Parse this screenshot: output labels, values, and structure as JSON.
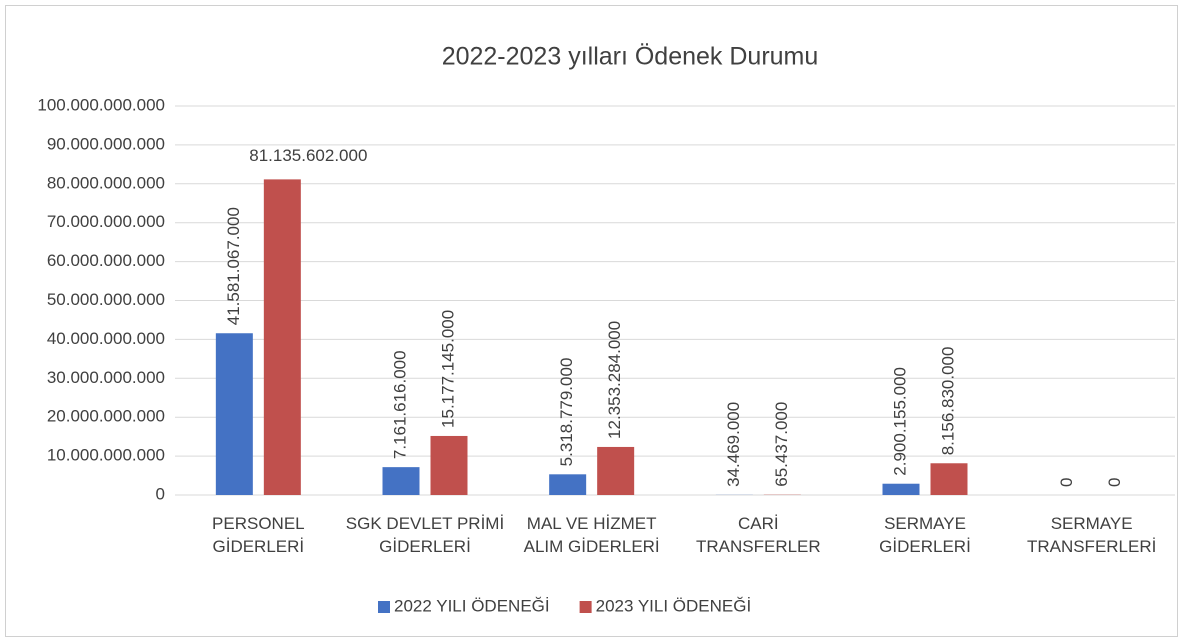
{
  "chart_data": {
    "type": "bar",
    "title": "2022-2023 yılları Ödenek Durumu",
    "categories": [
      "PERSONEL GİDERLERİ",
      "SGK DEVLET PRİMİ GİDERLERİ",
      "MAL VE HİZMET ALIM GİDERLERİ",
      "CARİ TRANSFERLER",
      "SERMAYE GİDERLERİ",
      "SERMAYE TRANSFERLERİ"
    ],
    "series": [
      {
        "name": "2022 YILI ÖDENEĞİ",
        "color": "#4472c4",
        "values": [
          41581067000,
          7161616000,
          5318779000,
          34469000,
          2900155000,
          0
        ],
        "value_labels": [
          "41.581.067.000",
          "7.161.616.000",
          "5.318.779.000",
          "34.469.000",
          "2.900.155.000",
          "0"
        ]
      },
      {
        "name": "2023 YILI ÖDENEĞİ",
        "color": "#c0504d",
        "values": [
          81135602000,
          15177145000,
          12353284000,
          65437000,
          8156830000,
          0
        ],
        "value_labels": [
          "81.135.602.000",
          "15.177.145.000",
          "12.353.284.000",
          "65.437.000",
          "8.156.830.000",
          "0"
        ]
      }
    ],
    "ylim": [
      0,
      100000000000
    ],
    "yticks": [
      0,
      {
        "value": 10000000000,
        "label": "10.000.000.000"
      },
      {
        "value": 20000000000,
        "label": "20.000.000.000"
      },
      {
        "value": 30000000000,
        "label": "30.000.000.000"
      },
      {
        "value": 40000000000,
        "label": "40.000.000.000"
      },
      {
        "value": 50000000000,
        "label": "50.000.000.000"
      },
      {
        "value": 60000000000,
        "label": "60.000.000.000"
      },
      {
        "value": 70000000000,
        "label": "70.000.000.000"
      },
      {
        "value": 80000000000,
        "label": "80.000.000.000"
      },
      {
        "value": 90000000000,
        "label": "90.000.000.000"
      },
      {
        "value": 100000000000,
        "label": "100.000.000.000"
      }
    ],
    "grid": true,
    "legend": "bottom"
  }
}
